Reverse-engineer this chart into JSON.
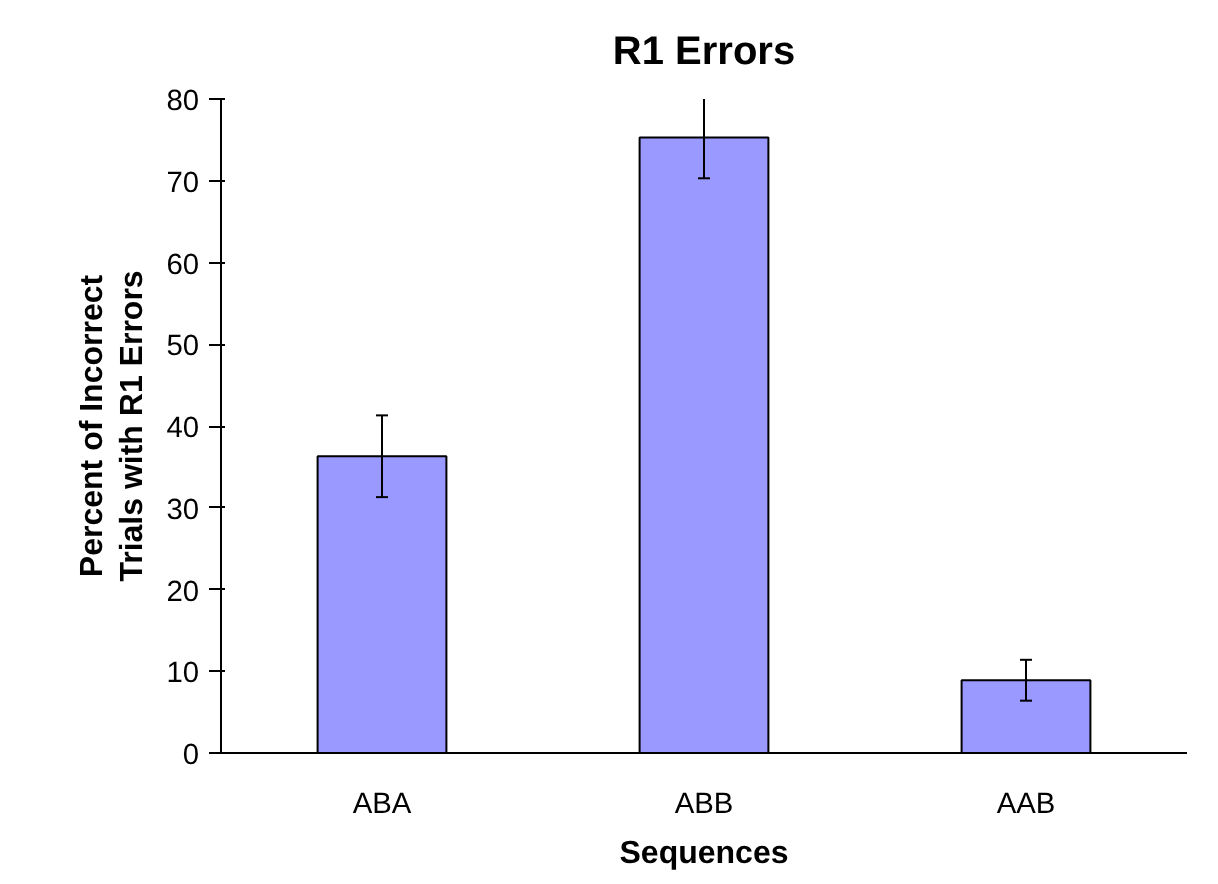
{
  "chart_data": {
    "type": "bar",
    "title": "R1 Errors",
    "xlabel": "Sequences",
    "ylabel": "Percent of Incorrect\nTrials with R1 Errors",
    "categories": [
      "ABA",
      "ABB",
      "AAB"
    ],
    "values": [
      36.3,
      75.3,
      8.9
    ],
    "errors": [
      5,
      5,
      2.5
    ],
    "color": "#9999ff",
    "ylim": [
      0,
      80
    ],
    "yticks": [
      0,
      10,
      20,
      30,
      40,
      50,
      60,
      70,
      80
    ],
    "grid": false
  }
}
